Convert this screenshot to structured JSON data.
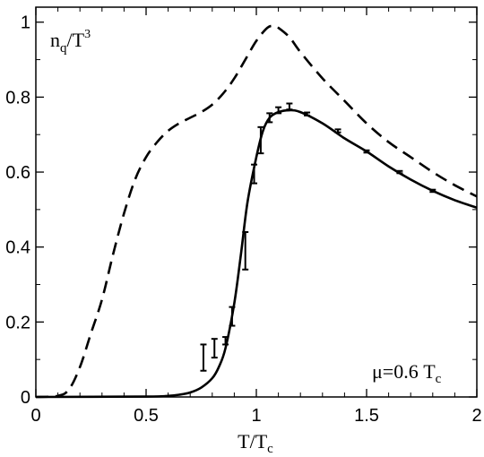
{
  "chart_data": {
    "type": "line",
    "title": "",
    "xlabel": {
      "base": "T/T",
      "sub": "c"
    },
    "ylabel": {
      "base": "n",
      "sub": "q",
      "rest": "/T",
      "sup": "3"
    },
    "annotation": {
      "base": "μ=0.6 T",
      "sub": "c"
    },
    "xlim": [
      0,
      2
    ],
    "ylim": [
      0,
      1.04
    ],
    "xticks": [
      0,
      0.5,
      1,
      1.5,
      2
    ],
    "xtick_labels": [
      "0",
      "0.5",
      "1",
      "1.5",
      "2"
    ],
    "yticks": [
      0,
      0.2,
      0.4,
      0.6,
      0.8,
      1.0
    ],
    "ytick_labels": [
      "0",
      "0.2",
      "0.4",
      "0.6",
      "0.8",
      "1"
    ],
    "grid": false,
    "legend": "none",
    "series": [
      {
        "style": "dashed",
        "color": "#000000",
        "x": [
          0.0,
          0.1,
          0.15,
          0.2,
          0.25,
          0.3,
          0.35,
          0.4,
          0.45,
          0.5,
          0.55,
          0.6,
          0.65,
          0.7,
          0.75,
          0.8,
          0.85,
          0.9,
          0.95,
          1.0,
          1.05,
          1.08,
          1.1,
          1.15,
          1.2,
          1.3,
          1.4,
          1.5,
          1.6,
          1.7,
          1.8,
          1.9,
          2.0
        ],
        "y": [
          0.0,
          0.003,
          0.02,
          0.08,
          0.17,
          0.26,
          0.38,
          0.49,
          0.58,
          0.64,
          0.68,
          0.71,
          0.73,
          0.745,
          0.76,
          0.78,
          0.81,
          0.85,
          0.9,
          0.95,
          0.985,
          0.99,
          0.985,
          0.96,
          0.92,
          0.85,
          0.79,
          0.73,
          0.68,
          0.64,
          0.6,
          0.565,
          0.535
        ]
      },
      {
        "style": "solid",
        "color": "#000000",
        "x": [
          0.0,
          0.5,
          0.6,
          0.65,
          0.7,
          0.75,
          0.8,
          0.83,
          0.86,
          0.9,
          0.93,
          0.96,
          1.0,
          1.03,
          1.06,
          1.1,
          1.15,
          1.2,
          1.3,
          1.4,
          1.5,
          1.6,
          1.7,
          1.8,
          1.9,
          2.0
        ],
        "y": [
          0.0,
          0.001,
          0.003,
          0.006,
          0.012,
          0.025,
          0.05,
          0.08,
          0.13,
          0.25,
          0.38,
          0.52,
          0.64,
          0.71,
          0.745,
          0.76,
          0.765,
          0.76,
          0.73,
          0.69,
          0.655,
          0.615,
          0.58,
          0.55,
          0.525,
          0.505
        ]
      }
    ],
    "error_points": [
      {
        "x": 0.76,
        "y": 0.105,
        "err": 0.035
      },
      {
        "x": 0.81,
        "y": 0.13,
        "err": 0.025
      },
      {
        "x": 0.86,
        "y": 0.15,
        "err": 0.01
      },
      {
        "x": 0.89,
        "y": 0.215,
        "err": 0.025
      },
      {
        "x": 0.95,
        "y": 0.39,
        "err": 0.05
      },
      {
        "x": 0.99,
        "y": 0.595,
        "err": 0.025
      },
      {
        "x": 1.02,
        "y": 0.685,
        "err": 0.035
      },
      {
        "x": 1.06,
        "y": 0.745,
        "err": 0.012
      },
      {
        "x": 1.1,
        "y": 0.765,
        "err": 0.008
      },
      {
        "x": 1.15,
        "y": 0.775,
        "err": 0.008
      },
      {
        "x": 1.23,
        "y": 0.755,
        "err": 0.004
      },
      {
        "x": 1.37,
        "y": 0.71,
        "err": 0.004
      },
      {
        "x": 1.5,
        "y": 0.655,
        "err": 0.003
      },
      {
        "x": 1.65,
        "y": 0.6,
        "err": 0.003
      },
      {
        "x": 1.8,
        "y": 0.55,
        "err": 0.003
      }
    ]
  }
}
